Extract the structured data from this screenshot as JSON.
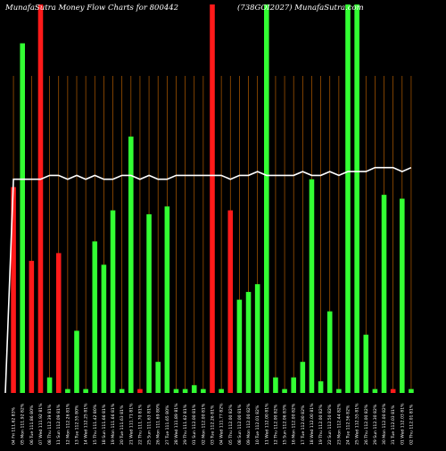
{
  "chart_data": {
    "type": "bar",
    "title": "MunafaSutra  Money Flow  Charts for 800442",
    "subtitle": "(738GOI2027) MunafaSutra.com",
    "colors": {
      "background": "#000000",
      "green": "#33ff33",
      "red": "#ff1a1a",
      "grid": "#b35c00",
      "line": "#ffffff"
    },
    "grid": true,
    "ylim": [
      0,
      100
    ],
    "categories": [
      "04 Fri 111.62 83%",
      "05 Mon 111.92 82%",
      "06 Tue 111.86 80%",
      "07 Wed 111.92 81%",
      "08 Thu 112.39 81%",
      "11 Sun 112.09 81%",
      "12 Mon 112.26 81%",
      "13 Tue 112.55 80%",
      "14 Wed 112.25 81%",
      "15 Thu 111.42 80%",
      "18 Sun 111.66 81%",
      "19 Mon 111.66 81%",
      "20 Tue 111.63 81%",
      "21 Wed 111.71 81%",
      "22 Thu 111.70 81%",
      "25 Sun 111.63 81%",
      "26 Mon 111.69 80%",
      "27 Tue 111.65 80%",
      "28 Wed 111.89 81%",
      "29 Thu 111.62 81%",
      "01 Sun 112.00 81%",
      "02 Mon 112.00 81%",
      "03 Tue 112.26 81%",
      "04 Wed 111.77 82%",
      "05 Thu 112.00 82%",
      "08 Sun 112.00 81%",
      "09 Mon 112.00 82%",
      "10 Tue 112.01 82%",
      "11 Wed 112.00 81%",
      "12 Thu 112.00 82%",
      "15 Sun 112.06 83%",
      "16 Mon 112.00 82%",
      "17 Tue 112.00 82%",
      "18 Wed 112.00 81%",
      "19 Thu 112.00 82%",
      "22 Sun 112.50 82%",
      "23 Mon 112.44 82%",
      "24 Tue 112.56 82%",
      "25 Wed 112.55 81%",
      "26 Thu 112.00 82%",
      "29 Sun 112.30 82%",
      "30 Mon 112.00 82%",
      "31 Tue 112.03 81%",
      "01 Wed 112.03 81%",
      "02 Thu 112.01 81%"
    ],
    "bar_colors": [
      "r",
      "g",
      "r",
      "r",
      "g",
      "r",
      "g",
      "g",
      "g",
      "g",
      "g",
      "g",
      "g",
      "g",
      "r",
      "g",
      "g",
      "g",
      "g",
      "g",
      "g",
      "g",
      "r",
      "g",
      "r",
      "g",
      "g",
      "g",
      "g",
      "g",
      "g",
      "g",
      "g",
      "g",
      "g",
      "g",
      "g",
      "g",
      "g",
      "g",
      "g",
      "g",
      "r",
      "g",
      "g"
    ],
    "values": [
      53,
      90,
      34,
      100,
      4,
      36,
      1,
      16,
      1,
      39,
      33,
      47,
      1,
      66,
      1,
      46,
      8,
      48,
      1,
      1,
      2,
      1,
      100,
      1,
      47,
      24,
      26,
      28,
      100,
      4,
      1,
      4,
      8,
      55,
      3,
      21,
      1,
      100,
      100,
      15,
      1,
      51,
      1,
      50,
      1
    ],
    "values_note": "bar height as percent of plot height",
    "line": {
      "name": "",
      "values": [
        55,
        55,
        55,
        55,
        56,
        56,
        55,
        56,
        55,
        56,
        55,
        55,
        56,
        56,
        55,
        56,
        55,
        55,
        56,
        56,
        56,
        56,
        56,
        56,
        55,
        56,
        56,
        57,
        56,
        56,
        56,
        56,
        57,
        56,
        56,
        57,
        56,
        57,
        57,
        57,
        58,
        58,
        58,
        57,
        58
      ]
    }
  }
}
